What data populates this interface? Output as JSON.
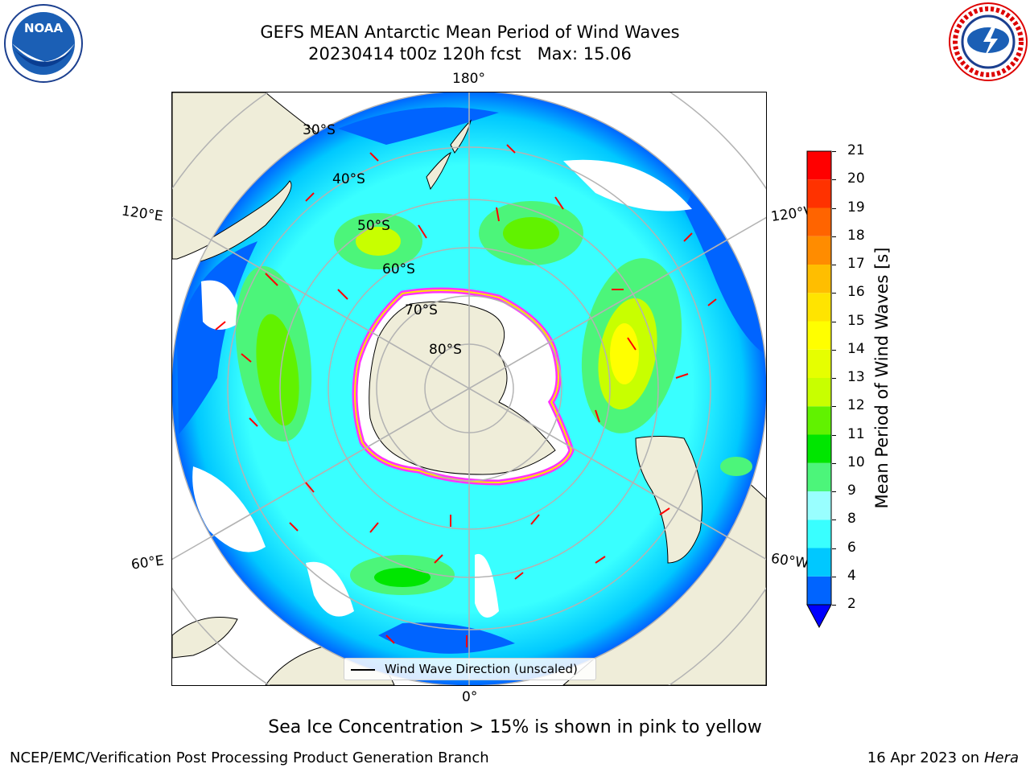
{
  "header": {
    "title_line1": "GEFS MEAN Antarctic Mean Period of Wind Waves",
    "title_line2": "20230414 t00z 120h fcst   Max: 15.06",
    "logo_left": "noaa-logo",
    "logo_right": "nws-logo"
  },
  "map": {
    "projection": "south-polar-stereographic",
    "longitude_labels": {
      "top": "180°",
      "bottom": "0°",
      "left_upper": "120°E",
      "left_lower": "60°E",
      "right_upper": "120°W",
      "right_lower": "60°W"
    },
    "latitude_labels": [
      "30°S",
      "40°S",
      "50°S",
      "60°S",
      "70°S",
      "80°S"
    ],
    "legend": {
      "label": "Wind Wave Direction (unscaled)"
    },
    "colors": {
      "land": "#efedd9",
      "ice": "#ff33ff",
      "arrow": "#ff0000",
      "grid": "#b3b3b3"
    }
  },
  "colorbar": {
    "label": "Mean Period of Wind Waves [s]",
    "ticks": [
      "2",
      "4",
      "6",
      "8",
      "9",
      "10",
      "11",
      "12",
      "13",
      "14",
      "15",
      "16",
      "17",
      "18",
      "19",
      "20",
      "21"
    ],
    "colors": [
      "#0064ff",
      "#00c8ff",
      "#39ffff",
      "#99ffff",
      "#4cf57a",
      "#00e600",
      "#61f200",
      "#c8ff00",
      "#e6ff00",
      "#ffff00",
      "#ffe400",
      "#ffbe00",
      "#ff8c00",
      "#ff6400",
      "#ff3200",
      "#ff0000"
    ],
    "under_color": "#0000ff"
  },
  "caption": "Sea Ice Concentration > 15% is shown in pink to yellow",
  "footer": {
    "left": "NCEP/EMC/Verification Post Processing Product Generation Branch",
    "right_prefix": "16 Apr 2023 on ",
    "right_italic": "Hera"
  }
}
